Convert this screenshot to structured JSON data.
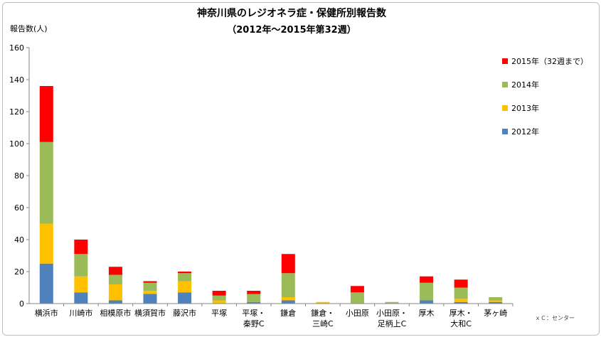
{
  "chart_data": {
    "type": "bar",
    "stacked": true,
    "title": "神奈川県のレジオネラ症・保健所別報告数",
    "subtitle": "（2012年～2015年第32週）",
    "ylabel": "報告数(人)",
    "xlabel": "",
    "ylim": [
      0,
      160
    ],
    "yticks": [
      0,
      20,
      40,
      60,
      80,
      100,
      120,
      140,
      160
    ],
    "grid": false,
    "legend_position": "right",
    "footnote": "ｘＣ：センター",
    "categories": [
      [
        "横浜市"
      ],
      [
        "川崎市"
      ],
      [
        "相模原市"
      ],
      [
        "横須賀市"
      ],
      [
        "藤沢市"
      ],
      [
        "平塚"
      ],
      [
        "平塚・",
        "秦野C"
      ],
      [
        "鎌倉"
      ],
      [
        "鎌倉・",
        "三崎C"
      ],
      [
        "小田原"
      ],
      [
        "小田原・",
        "足柄上C"
      ],
      [
        "厚木"
      ],
      [
        "厚木・",
        "大和C"
      ],
      [
        "茅ヶ崎"
      ]
    ],
    "series": [
      {
        "name": "2012年",
        "color": "#4f81bd",
        "values": [
          25,
          7,
          2,
          6,
          7,
          0,
          1,
          2,
          0,
          0,
          0,
          2,
          1,
          1
        ]
      },
      {
        "name": "2013年",
        "color": "#ffc000",
        "values": [
          25,
          10,
          10,
          2,
          7,
          2,
          0,
          2,
          1,
          0,
          0,
          0,
          2,
          1
        ]
      },
      {
        "name": "2014年",
        "color": "#9bbb59",
        "values": [
          51,
          14,
          6,
          5,
          5,
          3,
          5,
          15,
          0,
          7,
          1,
          11,
          7,
          2
        ]
      },
      {
        "name": "2015年（32週まで）",
        "color": "#ff0000",
        "values": [
          35,
          9,
          5,
          1,
          1,
          3,
          2,
          12,
          0,
          4,
          0,
          4,
          5,
          0
        ]
      }
    ]
  }
}
